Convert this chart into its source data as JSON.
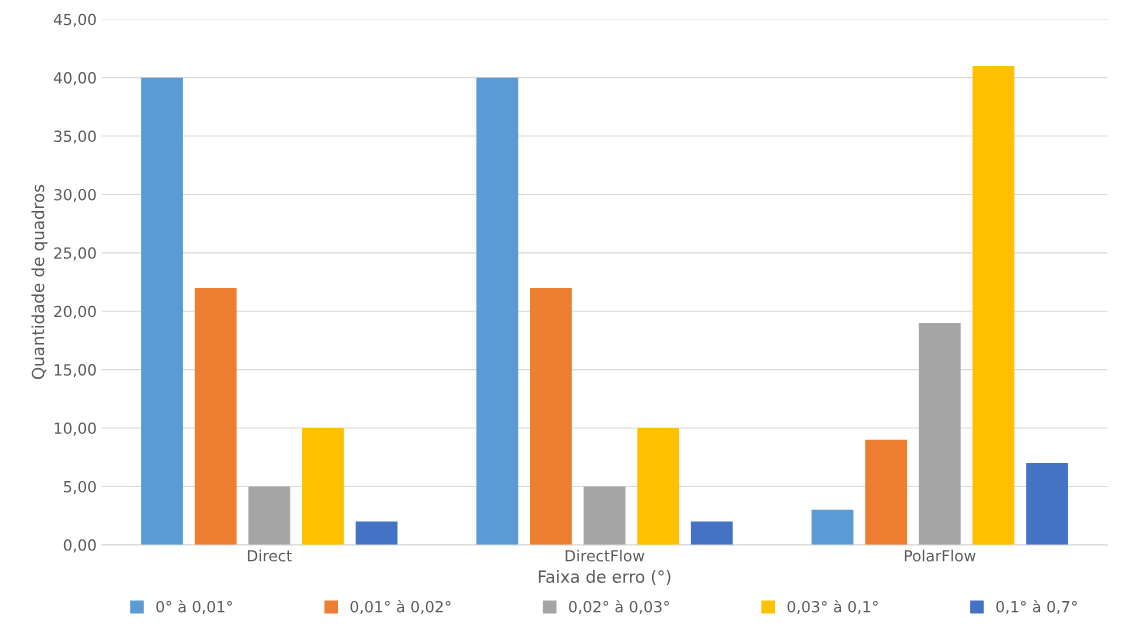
{
  "chart_data": {
    "type": "bar",
    "xlabel": "Faixa de erro (°)",
    "ylabel": "Quantidade de quadros",
    "categories": [
      "Direct",
      "DirectFlow",
      "PolarFlow"
    ],
    "series": [
      {
        "name": "0° à 0,01°",
        "color": "#5b9bd5",
        "values": [
          40,
          40,
          3
        ]
      },
      {
        "name": "0,01° à 0,02°",
        "color": "#ed7d31",
        "values": [
          22,
          22,
          9
        ]
      },
      {
        "name": "0,02° à 0,03°",
        "color": "#a5a5a5",
        "values": [
          5,
          5,
          19
        ]
      },
      {
        "name": "0,03° à 0,1°",
        "color": "#ffc000",
        "values": [
          10,
          10,
          41
        ]
      },
      {
        "name": "0,1° à 0,7°",
        "color": "#4472c4",
        "values": [
          2,
          2,
          7
        ]
      }
    ],
    "ylim": [
      0,
      45
    ],
    "yticks": [
      {
        "value": 0,
        "label": "0,00"
      },
      {
        "value": 5,
        "label": "5,00"
      },
      {
        "value": 10,
        "label": "10,00"
      },
      {
        "value": 15,
        "label": "15,00"
      },
      {
        "value": 20,
        "label": "20,00"
      },
      {
        "value": 25,
        "label": "25,00"
      },
      {
        "value": 30,
        "label": "30,00"
      },
      {
        "value": 35,
        "label": "35,00"
      },
      {
        "value": 40,
        "label": "40,00"
      },
      {
        "value": 45,
        "label": "45,00"
      }
    ],
    "grid": "y",
    "legend": "bottom"
  }
}
